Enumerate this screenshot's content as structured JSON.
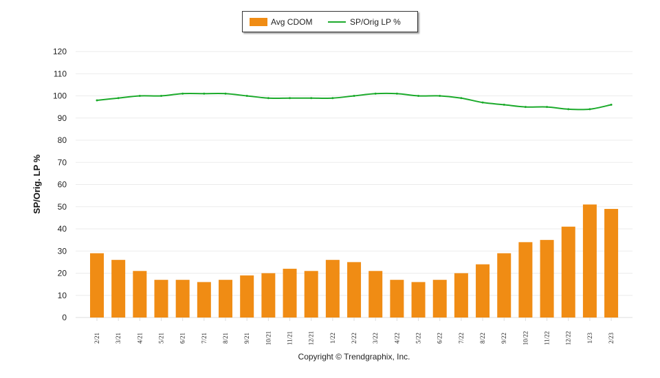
{
  "chart_data": {
    "type": "bar+line",
    "categories": [
      "2/21",
      "3/21",
      "4/21",
      "5/21",
      "6/21",
      "7/21",
      "8/21",
      "9/21",
      "10/21",
      "11/21",
      "12/21",
      "1/22",
      "2/22",
      "3/22",
      "4/22",
      "5/22",
      "6/22",
      "7/22",
      "8/22",
      "9/22",
      "10/22",
      "11/22",
      "12/22",
      "1/23",
      "2/23"
    ],
    "series": [
      {
        "name": "Avg CDOM",
        "type": "bar",
        "color": "#f08c14",
        "values": [
          29,
          26,
          21,
          17,
          17,
          16,
          17,
          19,
          20,
          22,
          21,
          26,
          25,
          21,
          17,
          16,
          17,
          20,
          24,
          29,
          34,
          35,
          41,
          51,
          49
        ]
      },
      {
        "name": "SP/Orig LP %",
        "type": "line",
        "color": "#1aaa2a",
        "values": [
          98,
          99,
          100,
          100,
          101,
          101,
          101,
          100,
          99,
          99,
          99,
          99,
          100,
          101,
          101,
          100,
          100,
          99,
          97,
          96,
          95,
          95,
          94,
          94,
          96
        ]
      }
    ],
    "ylabel": "SP/Orig. LP %",
    "ylim": [
      0,
      120
    ],
    "yticks": [
      0,
      10,
      20,
      30,
      40,
      50,
      60,
      70,
      80,
      90,
      100,
      110,
      120
    ],
    "grid": true,
    "legend": "top"
  },
  "copyright": "Copyright © Trendgraphix, Inc."
}
